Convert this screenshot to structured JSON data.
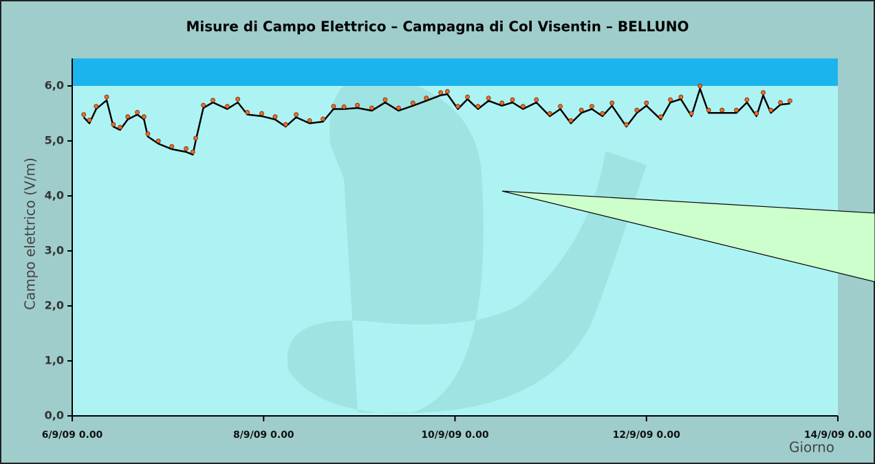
{
  "chart_data": {
    "type": "line",
    "title": "Misure di Campo Elettrico – Campagna di Col Visentin – BELLUNO",
    "y_label": "Campo elettrico (V/m)",
    "x_label": "Giorno",
    "xlim": [
      0,
      8
    ],
    "xticks": [
      {
        "value": 0,
        "label": "6/9/09 0.00"
      },
      {
        "value": 2,
        "label": "8/9/09 0.00"
      },
      {
        "value": 4,
        "label": "10/9/09 0.00"
      },
      {
        "value": 6,
        "label": "12/9/09 0.00"
      },
      {
        "value": 8,
        "label": "14/9/09 0.00"
      }
    ],
    "ylim": [
      0,
      6.5
    ],
    "yticks": [
      {
        "value": 0,
        "label": "0,0"
      },
      {
        "value": 1,
        "label": "1,0"
      },
      {
        "value": 2,
        "label": "2,0"
      },
      {
        "value": 3,
        "label": "3,0"
      },
      {
        "value": 4,
        "label": "4,0"
      },
      {
        "value": 5,
        "label": "5,0"
      },
      {
        "value": 6,
        "label": "6,0"
      }
    ],
    "limit_band": {
      "from": 6,
      "to": 6.5,
      "color": "#1cb4ec"
    },
    "x": [
      0.12,
      0.18,
      0.25,
      0.36,
      0.43,
      0.5,
      0.58,
      0.68,
      0.75,
      0.79,
      0.9,
      1.04,
      1.19,
      1.26,
      1.29,
      1.37,
      1.47,
      1.62,
      1.73,
      1.83,
      1.98,
      2.12,
      2.23,
      2.34,
      2.48,
      2.62,
      2.73,
      2.84,
      2.98,
      3.13,
      3.27,
      3.41,
      3.56,
      3.7,
      3.85,
      3.92,
      4.03,
      4.13,
      4.24,
      4.35,
      4.49,
      4.6,
      4.71,
      4.85,
      4.99,
      5.1,
      5.21,
      5.32,
      5.43,
      5.54,
      5.64,
      5.79,
      5.9,
      6.0,
      6.15,
      6.25,
      6.36,
      6.47,
      6.56,
      6.65,
      6.79,
      6.94,
      7.05,
      7.15,
      7.22,
      7.3,
      7.4,
      7.5
    ],
    "series": [
      {
        "mode": "line",
        "color": "#000000",
        "values": [
          5.43,
          5.32,
          5.58,
          5.74,
          5.26,
          5.2,
          5.39,
          5.48,
          5.39,
          5.08,
          4.95,
          4.85,
          4.8,
          4.75,
          5.0,
          5.6,
          5.7,
          5.58,
          5.7,
          5.48,
          5.45,
          5.39,
          5.26,
          5.43,
          5.32,
          5.35,
          5.58,
          5.58,
          5.6,
          5.55,
          5.7,
          5.55,
          5.64,
          5.73,
          5.83,
          5.85,
          5.58,
          5.76,
          5.58,
          5.73,
          5.64,
          5.7,
          5.58,
          5.7,
          5.45,
          5.58,
          5.32,
          5.51,
          5.58,
          5.45,
          5.64,
          5.26,
          5.51,
          5.64,
          5.39,
          5.7,
          5.76,
          5.45,
          5.95,
          5.51,
          5.51,
          5.51,
          5.7,
          5.45,
          5.83,
          5.51,
          5.66,
          5.68
        ]
      },
      {
        "mode": "markers",
        "color": "#f26b21",
        "values": [
          5.48,
          5.38,
          5.63,
          5.8,
          5.3,
          5.25,
          5.44,
          5.52,
          5.44,
          5.13,
          5.0,
          4.9,
          4.86,
          4.8,
          5.05,
          5.65,
          5.74,
          5.63,
          5.76,
          5.52,
          5.5,
          5.44,
          5.3,
          5.48,
          5.37,
          5.4,
          5.63,
          5.62,
          5.65,
          5.6,
          5.75,
          5.6,
          5.69,
          5.78,
          5.88,
          5.9,
          5.63,
          5.8,
          5.63,
          5.78,
          5.69,
          5.75,
          5.63,
          5.75,
          5.5,
          5.63,
          5.37,
          5.56,
          5.63,
          5.5,
          5.69,
          5.3,
          5.56,
          5.69,
          5.44,
          5.75,
          5.8,
          5.5,
          6.0,
          5.56,
          5.56,
          5.56,
          5.75,
          5.5,
          5.88,
          5.56,
          5.7,
          5.73
        ]
      }
    ]
  }
}
